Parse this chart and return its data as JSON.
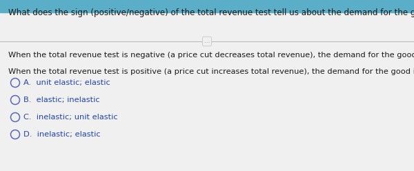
{
  "header_bg": "#5baec8",
  "card_bg": "#eeeeee",
  "content_bg": "#f2f2f2",
  "title": "What does the sign (positive/negative) of the total revenue test tell us about the demand for the good?",
  "title_fontsize": 8.6,
  "divider_dots": "...",
  "line1": "When the total revenue test is negative (a price cut decreases total revenue), the demand for the good is _______.",
  "line2": "When the total revenue test is positive (a price cut increases total revenue), the demand for the good is _______.",
  "options": [
    "A.  unit elastic; elastic",
    "B.  elastic; inelastic",
    "C.  inelastic; unit elastic",
    "D.  inelastic; elastic"
  ],
  "line_fontsize": 8.2,
  "option_fontsize": 8.2,
  "text_color": "#1a1a1a",
  "option_text_color": "#2244aa",
  "divider_color": "#bbbbbb",
  "circle_color": "#5566bb",
  "title_bold": false
}
